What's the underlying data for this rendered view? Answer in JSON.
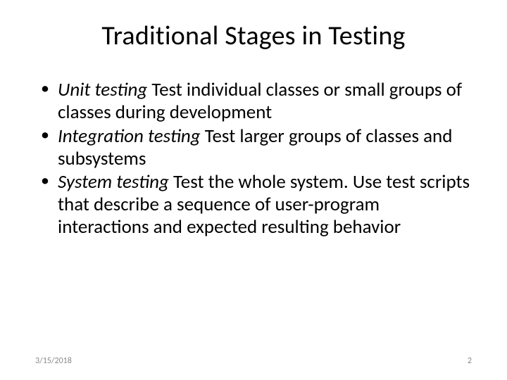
{
  "slide": {
    "title": "Traditional Stages in Testing",
    "bullets": [
      {
        "term": "Unit testing",
        "text": " Test individual classes or small groups of classes during development"
      },
      {
        "term": "Integration testing",
        "text": " Test larger groups of classes and subsystems"
      },
      {
        "term": "System testing",
        "text": " Test the whole system.  Use test scripts that describe a sequence of user-program interactions and expected resulting behavior"
      }
    ],
    "footer": {
      "date": "3/15/2018",
      "page": "2"
    }
  },
  "style": {
    "background_color": "#ffffff",
    "text_color": "#000000",
    "footer_color": "#8a8a8a",
    "title_fontsize": 38,
    "body_fontsize": 27,
    "footer_fontsize": 12,
    "font_family": "Calibri"
  }
}
